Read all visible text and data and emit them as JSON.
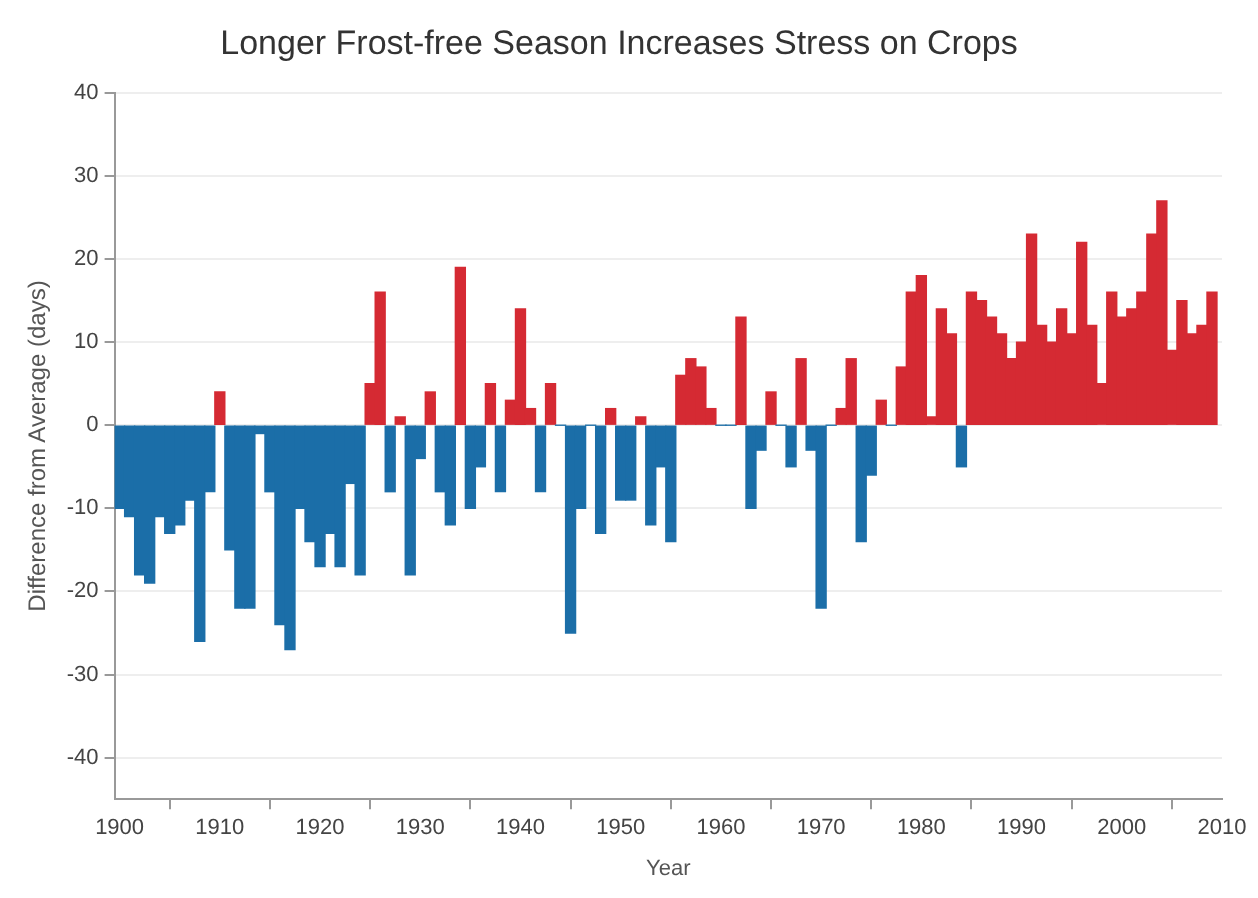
{
  "chart_data": {
    "type": "bar",
    "title": "Longer Frost-free Season Increases Stress on Crops",
    "xlabel": "Year",
    "ylabel": "Difference from Average (days)",
    "x": [
      1900,
      1901,
      1902,
      1903,
      1904,
      1905,
      1906,
      1907,
      1908,
      1909,
      1910,
      1911,
      1912,
      1913,
      1914,
      1915,
      1916,
      1917,
      1918,
      1919,
      1920,
      1921,
      1922,
      1923,
      1924,
      1925,
      1926,
      1927,
      1928,
      1929,
      1930,
      1931,
      1932,
      1933,
      1934,
      1935,
      1936,
      1937,
      1938,
      1939,
      1940,
      1941,
      1942,
      1943,
      1944,
      1945,
      1946,
      1947,
      1948,
      1949,
      1950,
      1951,
      1952,
      1953,
      1954,
      1955,
      1956,
      1957,
      1958,
      1959,
      1960,
      1961,
      1962,
      1963,
      1964,
      1965,
      1966,
      1967,
      1968,
      1969,
      1970,
      1971,
      1972,
      1973,
      1974,
      1975,
      1976,
      1977,
      1978,
      1979,
      1980,
      1981,
      1982,
      1983,
      1984,
      1985,
      1986,
      1987,
      1988,
      1989,
      1990,
      1991,
      1992,
      1993,
      1994,
      1995,
      1996,
      1997,
      1998,
      1999,
      2000,
      2001,
      2002,
      2003,
      2004,
      2005,
      2006,
      2007,
      2008,
      2009
    ],
    "values": [
      -10,
      -11,
      -18,
      -19,
      -11,
      -13,
      -12,
      -9,
      -26,
      -8,
      4,
      -15,
      -22,
      -22,
      -1,
      -8,
      -24,
      -27,
      -10,
      -14,
      -17,
      -13,
      -17,
      -7,
      -18,
      5,
      16,
      -8,
      1,
      -18,
      -4,
      4,
      -8,
      -12,
      19,
      -10,
      -5,
      5,
      -8,
      3,
      14,
      2,
      -8,
      5,
      0,
      -25,
      -10,
      0,
      -13,
      2,
      -9,
      -9,
      1,
      -12,
      -5,
      -14,
      6,
      8,
      7,
      2,
      0,
      0,
      13,
      -10,
      -3,
      4,
      0,
      -5,
      8,
      -3,
      -22,
      0,
      2,
      8,
      -14,
      -6,
      3,
      0,
      7,
      16,
      18,
      1,
      14,
      11,
      -5,
      16,
      15,
      13,
      11,
      8,
      10,
      23,
      12,
      10,
      14,
      11,
      22,
      12,
      5,
      16,
      13,
      14,
      16,
      23,
      27,
      9,
      15,
      11,
      12,
      16
    ],
    "colors": [
      "#1b6ea8",
      "#1b6ea8",
      "#1b6ea8",
      "#1b6ea8",
      "#1b6ea8",
      "#1b6ea8",
      "#1b6ea8",
      "#1b6ea8",
      "#1b6ea8",
      "#1b6ea8",
      "#d52a33",
      "#1b6ea8",
      "#1b6ea8",
      "#1b6ea8",
      "#1b6ea8",
      "#1b6ea8",
      "#1b6ea8",
      "#1b6ea8",
      "#1b6ea8",
      "#1b6ea8",
      "#1b6ea8",
      "#1b6ea8",
      "#1b6ea8",
      "#1b6ea8",
      "#1b6ea8",
      "#d52a33",
      "#d52a33",
      "#1b6ea8",
      "#d52a33",
      "#1b6ea8",
      "#1b6ea8",
      "#d52a33",
      "#1b6ea8",
      "#1b6ea8",
      "#d52a33",
      "#1b6ea8",
      "#1b6ea8",
      "#d52a33",
      "#1b6ea8",
      "#d52a33",
      "#d52a33",
      "#d52a33",
      "#1b6ea8",
      "#d52a33",
      "#1b6ea8",
      "#1b6ea8",
      "#1b6ea8",
      "#1b6ea8",
      "#1b6ea8",
      "#d52a33",
      "#1b6ea8",
      "#1b6ea8",
      "#d52a33",
      "#1b6ea8",
      "#1b6ea8",
      "#1b6ea8",
      "#d52a33",
      "#d52a33",
      "#d52a33",
      "#d52a33",
      "#1b6ea8",
      "#1b6ea8",
      "#d52a33",
      "#1b6ea8",
      "#1b6ea8",
      "#d52a33",
      "#1b6ea8",
      "#1b6ea8",
      "#d52a33",
      "#1b6ea8",
      "#1b6ea8",
      "#1b6ea8",
      "#d52a33",
      "#d52a33",
      "#1b6ea8",
      "#1b6ea8",
      "#d52a33",
      "#1b6ea8",
      "#d52a33",
      "#d52a33",
      "#d52a33",
      "#d52a33",
      "#d52a33",
      "#d52a33",
      "#1b6ea8",
      "#d52a33",
      "#d52a33",
      "#d52a33",
      "#d52a33",
      "#d52a33",
      "#d52a33",
      "#d52a33",
      "#d52a33",
      "#d52a33",
      "#d52a33",
      "#d52a33",
      "#d52a33",
      "#d52a33",
      "#d52a33",
      "#d52a33",
      "#d52a33",
      "#d52a33",
      "#d52a33",
      "#d52a33",
      "#d52a33",
      "#d52a33",
      "#d52a33",
      "#d52a33",
      "#d52a33",
      "#d52a33"
    ],
    "xlim": [
      1899.5,
      2010
    ],
    "xticks": [
      1900,
      1910,
      1920,
      1930,
      1940,
      1950,
      1960,
      1970,
      1980,
      1990,
      2000,
      2010
    ],
    "ylim": [
      -45,
      40
    ],
    "yticks": [
      -40,
      -30,
      -20,
      -10,
      0,
      10,
      20,
      30,
      40
    ],
    "grid": "y",
    "legend": false
  }
}
